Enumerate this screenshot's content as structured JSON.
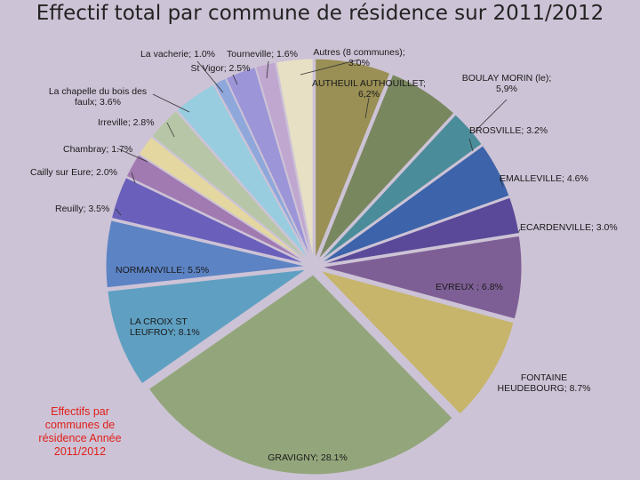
{
  "title": "Effectif total par commune de résidence sur 2011/2012",
  "note": "Effectifs par communes de résidence Année 2011/2012",
  "chart_data": {
    "type": "pie",
    "title": "Effectif total par commune de résidence sur 2011/2012",
    "unit": "%",
    "slices": [
      {
        "name": "AUTHEUIL AUTHOUILLET",
        "value": 6.2,
        "label": [
          "AUTHEUIL AUTHOUILLET;",
          "6,2%"
        ],
        "color": "#9a8f55"
      },
      {
        "name": "BOULAY MORIN (le)",
        "value": 5.9,
        "label": [
          "BOULAY MORIN (le);",
          "5,9%"
        ],
        "color": "#79875f"
      },
      {
        "name": "BROSVILLE",
        "value": 3.2,
        "label": [
          "BROSVILLE; 3.2%"
        ],
        "color": "#4b8c9a"
      },
      {
        "name": "EMALLEVILLE",
        "value": 4.6,
        "label": [
          "EMALLEVILLE; 4.6%"
        ],
        "color": "#3d63aa"
      },
      {
        "name": "ECARDENVILLE",
        "value": 3.0,
        "label": [
          "ECARDENVILLE; 3.0%"
        ],
        "color": "#5a4998"
      },
      {
        "name": "EVREUX",
        "value": 6.8,
        "label": [
          "EVREUX ; 6.8%"
        ],
        "color": "#7e5f95"
      },
      {
        "name": "FONTAINE HEUDEBOURG",
        "value": 8.7,
        "label": [
          "FONTAINE",
          "HEUDEBOURG; 8.7%"
        ],
        "color": "#c6b56a"
      },
      {
        "name": "GRAVIGNY",
        "value": 28.1,
        "label": [
          "GRAVIGNY; 28.1%"
        ],
        "color": "#93a67b"
      },
      {
        "name": "LA CROIX ST LEUFROY",
        "value": 8.1,
        "label": [
          "LA CROIX ST",
          "LEUFROY; 8.1%"
        ],
        "color": "#5fa0c2"
      },
      {
        "name": "NORMANVILLE",
        "value": 5.5,
        "label": [
          "NORMANVILLE; 5.5%"
        ],
        "color": "#5c83c4"
      },
      {
        "name": "Reuilly",
        "value": 3.5,
        "label": [
          "Reuilly; 3.5%"
        ],
        "color": "#6a60bb"
      },
      {
        "name": "Cailly sur Eure",
        "value": 2.0,
        "label": [
          "Cailly sur Eure; 2.0%"
        ],
        "color": "#a17ab1"
      },
      {
        "name": "Chambray",
        "value": 1.7,
        "label": [
          "Chambray; 1.7%"
        ],
        "color": "#e4d8a0"
      },
      {
        "name": "Irreville",
        "value": 2.8,
        "label": [
          "Irreville; 2.8%"
        ],
        "color": "#b7c6a6"
      },
      {
        "name": "La chapelle du bois des faulx",
        "value": 3.6,
        "label": [
          "La chapelle du bois des",
          "faulx; 3.6%"
        ],
        "color": "#98cde0"
      },
      {
        "name": "La vacherie",
        "value": 1.0,
        "label": [
          "La vacherie; 1.0%"
        ],
        "color": "#8fa8dc"
      },
      {
        "name": "St Vigor",
        "value": 2.5,
        "label": [
          "St Vigor; 2.5%"
        ],
        "color": "#9c95d8"
      },
      {
        "name": "Tourneville",
        "value": 1.6,
        "label": [
          "Tourneville; 1.6%"
        ],
        "color": "#c0a7d0"
      },
      {
        "name": "Autres (8 communes)",
        "value": 3.0,
        "label": [
          "Autres (8 communes);",
          "3.0%"
        ],
        "color": "#e8e0c4"
      }
    ]
  }
}
